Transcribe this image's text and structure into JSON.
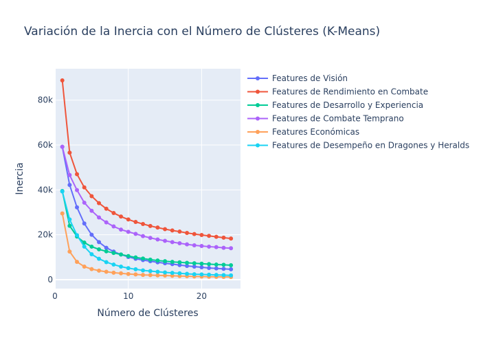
{
  "chart_data": {
    "type": "line",
    "title": "Variación de la Inercia con el Número de Clústeres (K-Means)",
    "xlabel": "Número de Clústeres",
    "ylabel": "Inercia",
    "xlim": [
      0,
      25.3
    ],
    "ylim": [
      -4000,
      94000
    ],
    "xticks": [
      0,
      10,
      20
    ],
    "xtick_labels": [
      "0",
      "10",
      "20"
    ],
    "yticks": [
      0,
      20000,
      40000,
      60000,
      80000
    ],
    "ytick_labels": [
      "0",
      "20k",
      "40k",
      "60k",
      "80k"
    ],
    "grid": true,
    "legend_position": "right",
    "x": [
      1,
      2,
      3,
      4,
      5,
      6,
      7,
      8,
      9,
      10,
      11,
      12,
      13,
      14,
      15,
      16,
      17,
      18,
      19,
      20,
      21,
      22,
      23,
      24
    ],
    "series": [
      {
        "name": "Features de Visión",
        "color": "#636efa",
        "values": [
          59200,
          42200,
          32200,
          25000,
          20000,
          16700,
          14200,
          12500,
          11200,
          10100,
          9300,
          8700,
          8200,
          7700,
          7300,
          6900,
          6500,
          6100,
          5800,
          5500,
          5200,
          5000,
          4800,
          4600
        ]
      },
      {
        "name": "Features de Rendimiento en Combate",
        "color": "#ef553b",
        "values": [
          88800,
          56600,
          47000,
          41100,
          37200,
          34100,
          31600,
          29700,
          28100,
          26800,
          25700,
          24800,
          23900,
          23200,
          22500,
          21900,
          21400,
          20800,
          20300,
          19900,
          19500,
          19100,
          18700,
          18300
        ]
      },
      {
        "name": "Features de Desarrollo y Experiencia",
        "color": "#00cc96",
        "values": [
          39500,
          24000,
          19200,
          16500,
          14700,
          13500,
          12600,
          11900,
          11200,
          10500,
          9900,
          9400,
          8900,
          8500,
          8200,
          7900,
          7700,
          7500,
          7300,
          7100,
          6900,
          6700,
          6600,
          6400
        ]
      },
      {
        "name": "Features de Combate Temprano",
        "color": "#ab63fa",
        "values": [
          59200,
          46600,
          39900,
          34300,
          30700,
          27700,
          25500,
          23700,
          22300,
          21300,
          20400,
          19400,
          18600,
          17900,
          17300,
          16700,
          16200,
          15700,
          15300,
          15000,
          14700,
          14500,
          14200,
          14000
        ]
      },
      {
        "name": "Features Económicas",
        "color": "#ffa15a",
        "values": [
          29500,
          12500,
          7900,
          5800,
          4700,
          4000,
          3500,
          3100,
          2800,
          2500,
          2300,
          2100,
          2000,
          1900,
          1800,
          1700,
          1600,
          1500,
          1400,
          1350,
          1300,
          1250,
          1200,
          1150
        ]
      },
      {
        "name": "Features de Desempeño en Dragones y Heralds",
        "color": "#19d3f3",
        "values": [
          39300,
          26800,
          19800,
          14700,
          11300,
          9300,
          7800,
          6700,
          5800,
          5100,
          4600,
          4100,
          3800,
          3500,
          3200,
          3000,
          2800,
          2600,
          2400,
          2300,
          2200,
          2100,
          2000,
          1900
        ]
      }
    ]
  }
}
